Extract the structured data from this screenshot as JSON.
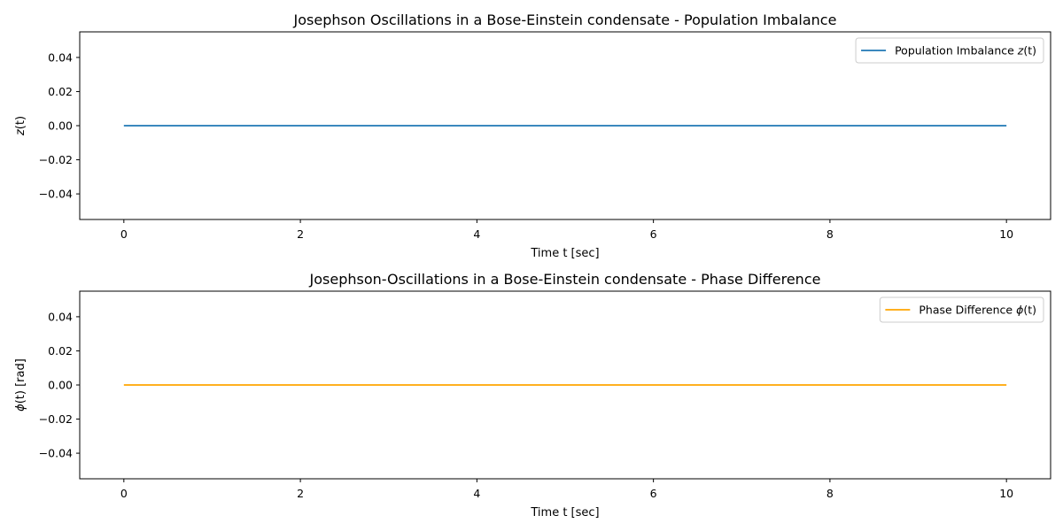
{
  "chart_data": [
    {
      "type": "line",
      "title": "Josephson Oscillations in a Bose-Einstein condensate - Population Imbalance",
      "xlabel": "Time t [sec]",
      "ylabel": "z(t)",
      "xlim": [
        -0.5,
        10.5
      ],
      "ylim": [
        -0.055,
        0.055
      ],
      "xticks": [
        0,
        2,
        4,
        6,
        8,
        10
      ],
      "xtick_labels": [
        "0",
        "2",
        "4",
        "6",
        "8",
        "10"
      ],
      "yticks": [
        -0.04,
        -0.02,
        0.0,
        0.02,
        0.04
      ],
      "ytick_labels": [
        "−0.04",
        "−0.02",
        "0.00",
        "0.02",
        "0.04"
      ],
      "grid": false,
      "legend": {
        "placement": "top-right",
        "entries": [
          "Population Imbalance z(t)"
        ]
      },
      "series": [
        {
          "name": "Population Imbalance z(t)",
          "color": "#1f77b4",
          "x": [
            0,
            10
          ],
          "y": [
            0,
            0
          ]
        }
      ]
    },
    {
      "type": "line",
      "title": "Josephson-Oscillations in a Bose-Einstein condensate - Phase Difference",
      "xlabel": "Time t [sec]",
      "ylabel": "ϕ(t) [rad]",
      "xlim": [
        -0.5,
        10.5
      ],
      "ylim": [
        -0.055,
        0.055
      ],
      "xticks": [
        0,
        2,
        4,
        6,
        8,
        10
      ],
      "xtick_labels": [
        "0",
        "2",
        "4",
        "6",
        "8",
        "10"
      ],
      "yticks": [
        -0.04,
        -0.02,
        0.0,
        0.02,
        0.04
      ],
      "ytick_labels": [
        "−0.04",
        "−0.02",
        "0.00",
        "0.02",
        "0.04"
      ],
      "grid": false,
      "legend": {
        "placement": "top-right",
        "entries": [
          "Phase Difference ϕ(t)"
        ]
      },
      "series": [
        {
          "name": "Phase Difference ϕ(t)",
          "color": "#ffa500",
          "x": [
            0,
            10
          ],
          "y": [
            0,
            0
          ]
        }
      ]
    }
  ]
}
